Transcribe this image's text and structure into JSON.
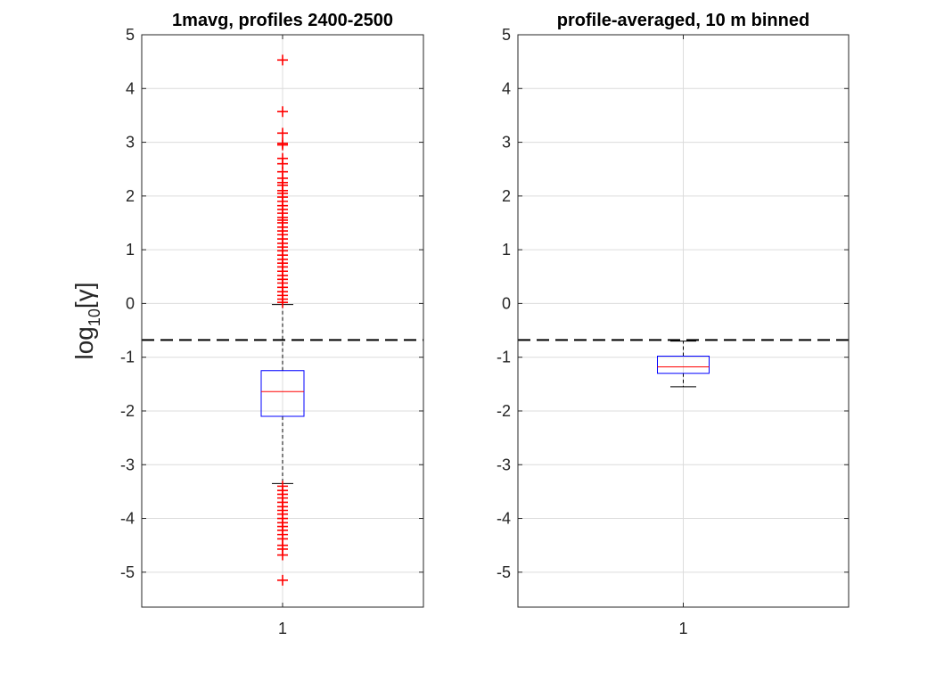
{
  "chart_data": [
    {
      "type": "box",
      "title": "1mavg, profiles 2400-2500",
      "ylabel": "log10[γ]",
      "categories": [
        "1"
      ],
      "ylim": [
        -5.65,
        5
      ],
      "yticks": [
        5,
        4,
        3,
        2,
        1,
        0,
        -1,
        -2,
        -3,
        -4,
        -5
      ],
      "grid": true,
      "reference_line": -0.68,
      "box": {
        "q1": -2.1,
        "median": -1.64,
        "q3": -1.25,
        "whisker_low": -3.35,
        "whisker_high": -0.02
      },
      "outliers": [
        4.53,
        3.57,
        3.17,
        2.98,
        2.95,
        2.7,
        2.6,
        2.45,
        2.33,
        2.25,
        2.2,
        2.1,
        2.05,
        1.98,
        1.9,
        1.82,
        1.75,
        1.68,
        1.6,
        1.55,
        1.5,
        1.42,
        1.35,
        1.28,
        1.2,
        1.12,
        1.05,
        0.98,
        0.9,
        0.82,
        0.75,
        0.68,
        0.6,
        0.52,
        0.45,
        0.38,
        0.3,
        0.22,
        0.15,
        0.08,
        0.02,
        -3.4,
        -3.48,
        -3.55,
        -3.62,
        -3.7,
        -3.78,
        -3.85,
        -3.92,
        -4.0,
        -4.08,
        -4.15,
        -4.22,
        -4.3,
        -4.38,
        -4.5,
        -4.57,
        -4.68,
        -5.15
      ]
    },
    {
      "type": "box",
      "title": "profile-averaged, 10 m binned",
      "ylabel": "",
      "categories": [
        "1"
      ],
      "ylim": [
        -5.65,
        5
      ],
      "yticks": [
        5,
        4,
        3,
        2,
        1,
        0,
        -1,
        -2,
        -3,
        -4,
        -5
      ],
      "grid": true,
      "reference_line": -0.68,
      "box": {
        "q1": -1.3,
        "median": -1.18,
        "q3": -0.98,
        "whisker_low": -1.55,
        "whisker_high": -0.7
      },
      "outliers": []
    }
  ],
  "colors": {
    "box": "#0000ff",
    "median": "#ff0000",
    "outlier": "#ff0000",
    "whisker": "#000000",
    "reference_line": "#000000",
    "grid": "#dcdcdc",
    "axis": "#262626"
  }
}
